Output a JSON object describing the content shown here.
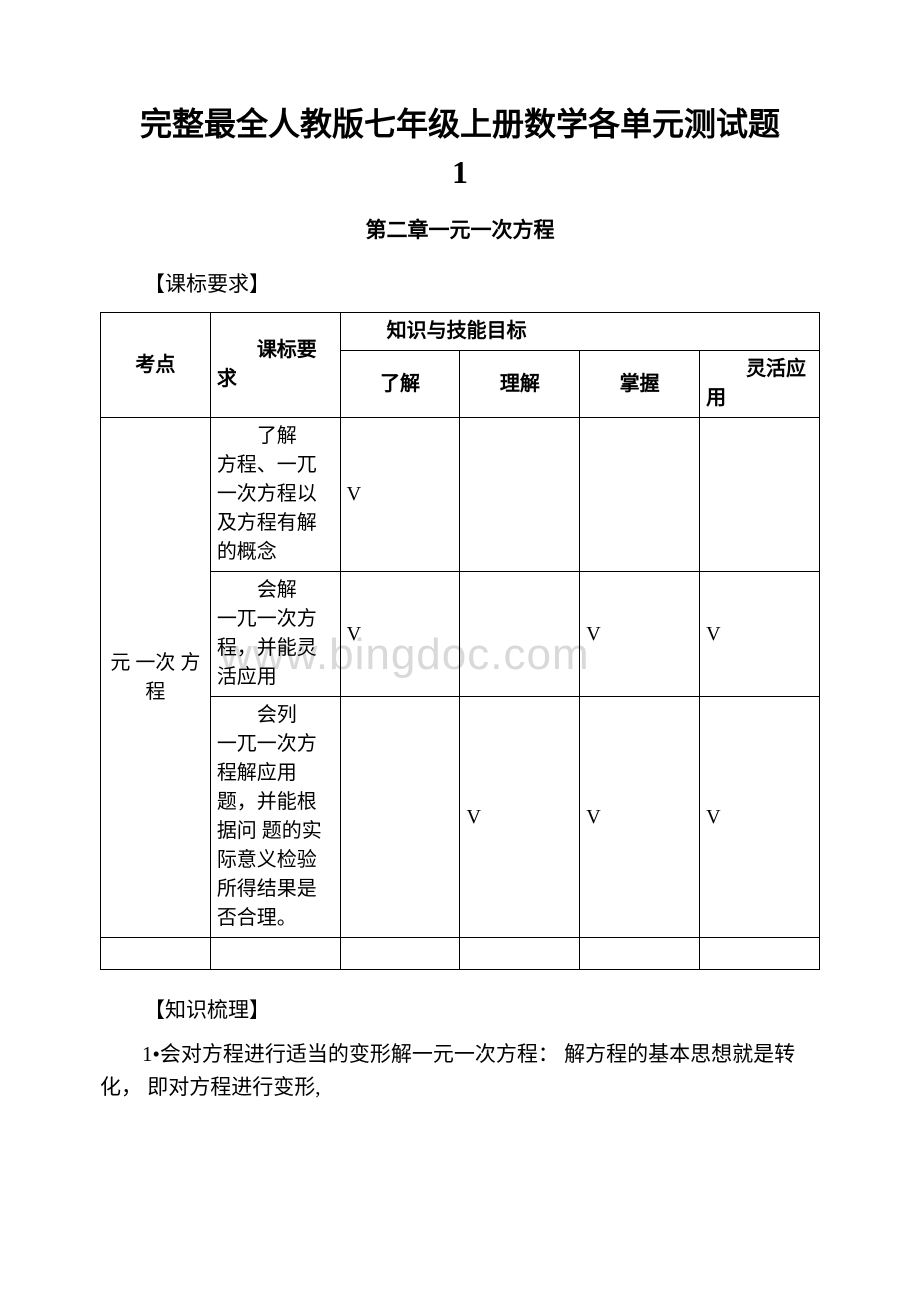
{
  "title_line1": "完整最全人教版七年级上册数学各单元测试题",
  "title_line2": "1",
  "subtitle": "第二章一元一次方程",
  "section1": "【课标要求】",
  "section2": "【知识梳理】",
  "table": {
    "header_kaodian": "考点",
    "header_yaoqiu": "课标要求",
    "header_goals": "知识与技能目标",
    "goal_cols": [
      "了解",
      "理解",
      "掌握",
      "灵活应用"
    ],
    "topic": "元 一次 方程",
    "rows": [
      {
        "req": "了解方程、一兀一次方程以及方程有解的概念",
        "req_first": "了解",
        "req_rest": "方程、一兀一次方程以及方程有解的概念",
        "marks": [
          "V",
          "",
          "",
          ""
        ]
      },
      {
        "req_first": "会解",
        "req_rest": "一兀一次方程，并能灵活应用",
        "marks": [
          "V",
          "",
          "V",
          "V"
        ]
      },
      {
        "req_first": "会列",
        "req_rest": "一兀一次方程解应用题，并能根据问 题的实 际意义检验所得结果是否合理。",
        "marks": [
          "",
          "V",
          "V",
          "V"
        ]
      }
    ]
  },
  "body1": "1•会对方程进行适当的变形解一元一次方程： 解方程的基本思想就是转化， 即对方程进行变形,",
  "watermark": "www.bingdoc.com",
  "colors": {
    "text": "#000000",
    "border": "#000000",
    "watermark": "#d9d9d9",
    "background": "#ffffff"
  },
  "fonts": {
    "title_size": 32,
    "subtitle_size": 21,
    "body_size": 21,
    "table_size": 20,
    "watermark_size": 44
  }
}
